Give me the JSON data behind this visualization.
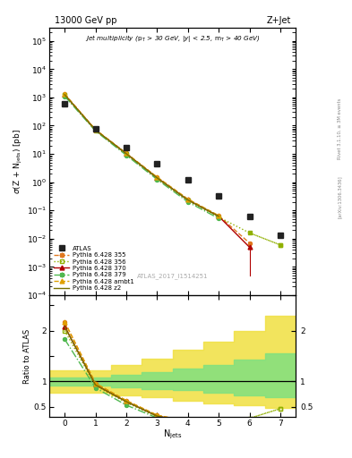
{
  "title_top": "13000 GeV pp",
  "title_right": "Z+Jet",
  "annotation": "Jet multiplicity (p$_{T}$ > 30 GeV, |y| < 2.5, m$_{T}$ > 40 GeV)",
  "atlas_label": "ATLAS_2017_I1514251",
  "ylabel_main": "$\\sigma$(Z + N$_{\\mathrm{jets}}$) [pb]",
  "ylabel_ratio": "Ratio to ATLAS",
  "xlabel": "N$_{\\mathrm{jets}}$",
  "rivet_label": "Rivet 3.1.10, ≥ 3M events",
  "arxiv_label": "[arXiv:1306.3436]",
  "atlas_x": [
    0,
    1,
    2,
    3,
    4,
    5,
    6,
    7
  ],
  "atlas_y": [
    600,
    75,
    17,
    4.5,
    1.2,
    0.32,
    0.06,
    0.013
  ],
  "njets": [
    0,
    1,
    2,
    3,
    4,
    5,
    6,
    7
  ],
  "py355_y": [
    1300,
    72,
    10.5,
    1.5,
    0.25,
    0.065,
    0.007,
    null
  ],
  "py356_y": [
    1200,
    68,
    9.8,
    1.35,
    0.22,
    0.058,
    0.016,
    0.006
  ],
  "py370_y": [
    1250,
    70,
    10.2,
    1.42,
    0.235,
    0.062,
    0.005,
    null
  ],
  "py379_y": [
    1100,
    65,
    9.0,
    1.25,
    0.2,
    0.052,
    null,
    null
  ],
  "pyambt1_y": [
    1300,
    72,
    10.5,
    1.5,
    0.25,
    0.065,
    null,
    null
  ],
  "pyz2_y": [
    1250,
    70,
    10.2,
    1.42,
    0.235,
    0.062,
    null,
    null
  ],
  "ratio_py355": [
    2.17,
    0.96,
    0.62,
    0.33,
    0.21,
    0.2,
    null,
    null
  ],
  "ratio_py356": [
    2.0,
    0.91,
    0.58,
    0.3,
    0.18,
    0.18,
    0.27,
    0.46
  ],
  "ratio_py370": [
    2.08,
    0.93,
    0.6,
    0.315,
    0.196,
    0.194,
    null,
    null
  ],
  "ratio_py379": [
    1.83,
    0.87,
    0.53,
    0.278,
    0.167,
    0.163,
    null,
    null
  ],
  "ratio_pyambt1": [
    2.17,
    0.96,
    0.62,
    0.333,
    0.208,
    0.203,
    null,
    null
  ],
  "ratio_pyz2": [
    2.08,
    0.93,
    0.6,
    0.315,
    0.196,
    0.194,
    null,
    null
  ],
  "band_x_edges": [
    -0.5,
    0.5,
    1.5,
    2.5,
    3.5,
    4.5,
    5.5,
    6.5,
    7.5
  ],
  "band_inner_lo": [
    0.92,
    0.92,
    0.88,
    0.85,
    0.82,
    0.78,
    0.72,
    0.68
  ],
  "band_inner_hi": [
    1.08,
    1.08,
    1.12,
    1.18,
    1.25,
    1.32,
    1.42,
    1.55
  ],
  "band_outer_lo": [
    0.78,
    0.78,
    0.72,
    0.68,
    0.62,
    0.57,
    0.52,
    0.47
  ],
  "band_outer_hi": [
    1.22,
    1.22,
    1.32,
    1.45,
    1.62,
    1.78,
    2.0,
    2.3
  ],
  "colors": {
    "atlas": "#222222",
    "py355": "#e07820",
    "py356": "#90b000",
    "py370": "#b00000",
    "py379": "#50b850",
    "pyambt1": "#e0a000",
    "pyz2": "#787000"
  },
  "background": "#ffffff",
  "main_ylim": [
    0.0001,
    300000.0
  ],
  "ratio_ylim": [
    0.3,
    2.7
  ],
  "xlim": [
    -0.5,
    7.5
  ]
}
